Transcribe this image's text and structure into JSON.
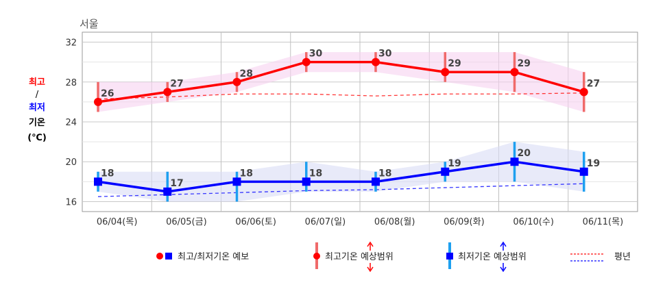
{
  "chart_data": {
    "type": "line",
    "title": "서울",
    "ylabel": {
      "max_label": "최고",
      "sep": "/",
      "min_label": "최저",
      "word": "기온",
      "unit": "(℃)"
    },
    "ylim": [
      15,
      33
    ],
    "yticks": [
      16,
      20,
      24,
      28,
      32
    ],
    "grid": true,
    "categories": [
      "06/04(목)",
      "06/05(금)",
      "06/06(토)",
      "06/07(일)",
      "06/08(월)",
      "06/09(화)",
      "06/10(수)",
      "06/11(목)"
    ],
    "series": [
      {
        "name": "최고기온 예보",
        "color": "#ff0000",
        "marker": "circle",
        "values": [
          26,
          27,
          28,
          30,
          30,
          29,
          29,
          27
        ],
        "range_low": [
          25,
          26,
          27,
          29,
          29,
          28,
          27,
          25
        ],
        "range_high": [
          28,
          28,
          29,
          31,
          31,
          31,
          31,
          29
        ],
        "normal": [
          26.3,
          26.5,
          26.8,
          26.8,
          26.6,
          26.8,
          26.8,
          26.9
        ]
      },
      {
        "name": "최저기온 예보",
        "color": "#0000ff",
        "marker": "square",
        "values": [
          18,
          17,
          18,
          18,
          18,
          19,
          20,
          19
        ],
        "range_low": [
          17,
          16,
          16,
          17,
          17,
          18,
          18,
          17
        ],
        "range_high": [
          19,
          19,
          19,
          20,
          19,
          20,
          22,
          21
        ],
        "normal": [
          16.5,
          16.7,
          16.9,
          17.1,
          17.2,
          17.4,
          17.6,
          17.8
        ]
      }
    ],
    "legend": {
      "position": "bottom",
      "items": [
        {
          "label": "최고/최저기온 예보",
          "icon": "circle-square-markers"
        },
        {
          "label": "최고기온 예상범위",
          "icon": "red-range-bar"
        },
        {
          "label": "최저기온 예상범위",
          "icon": "blue-range-bar"
        },
        {
          "label": "평년",
          "icon": "dashed-lines"
        }
      ]
    },
    "colors": {
      "max_line": "#ff0000",
      "min_line": "#0000ff",
      "max_range_bar": "#f06a6a",
      "min_range_bar": "#1ea0f0",
      "max_band": "#f7d2f0",
      "min_band": "#d8dcf5",
      "normal_max": "#ff3333",
      "normal_min": "#3333ff"
    }
  }
}
